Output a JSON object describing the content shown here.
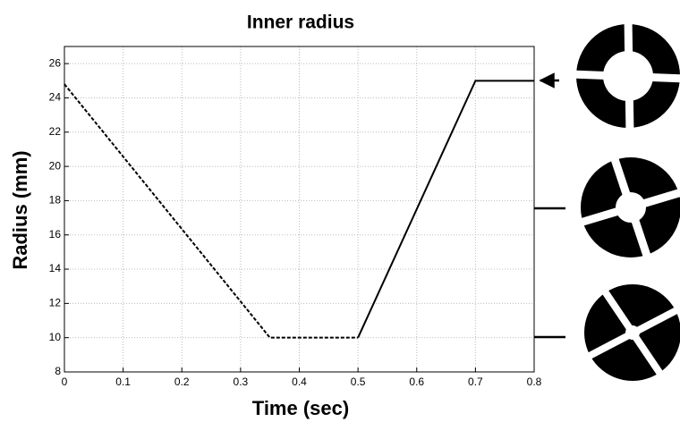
{
  "chart_data": {
    "type": "line",
    "title": "Inner radius",
    "x_label": "Time (sec)",
    "y_label": "Radius (mm)",
    "series": [
      {
        "color": "#000000",
        "dash": true,
        "x": [
          0,
          0.35,
          0.5
        ],
        "values": [
          24.8,
          10,
          10
        ]
      },
      {
        "color": "#000000",
        "dash": false,
        "x": [
          0.5,
          0.7,
          0.8
        ],
        "values": [
          10,
          25,
          25
        ]
      }
    ],
    "xlim": [
      0,
      0.8
    ],
    "xticks": [
      0,
      0.1,
      0.2,
      0.3,
      0.4,
      0.5,
      0.6,
      0.7,
      0.8
    ],
    "ylim": [
      8,
      27
    ],
    "yticks": [
      8,
      10,
      12,
      14,
      16,
      18,
      20,
      22,
      24,
      26
    ],
    "grid": true
  }
}
